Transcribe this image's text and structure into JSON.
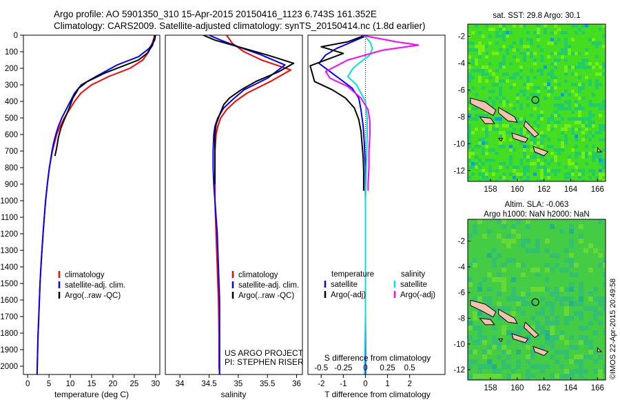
{
  "header": {
    "line1": "Argo profile: AO 5901350_310 15-Apr-2015 20150416_1123 6.743S 161.352E",
    "line2": "Climatology: CARS2009. Satellite-adjusted climatology: synTS_20150414.nc (1.8d earlier)"
  },
  "colors": {
    "climatology": "#ff0000",
    "satellite": "#0000ff",
    "argo": "#000000",
    "satellite_salinity": "#00e0e0",
    "argo_salinity_diff": "#ff00ff",
    "land": "#f4c0b0"
  },
  "chart_data": [
    {
      "type": "line",
      "id": "temperature",
      "xlabel": "temperature (deg C)",
      "xlim": [
        -1,
        31
      ],
      "xticks": [
        0,
        5,
        10,
        15,
        20,
        25,
        30
      ],
      "ylim": [
        2050,
        0
      ],
      "yticks": [
        0,
        100,
        200,
        300,
        400,
        500,
        600,
        700,
        800,
        900,
        1000,
        1100,
        1200,
        1300,
        1400,
        1500,
        1600,
        1700,
        1800,
        1900,
        2000
      ],
      "legend": {
        "position": "lower-middle",
        "entries": [
          "climatology",
          "satellite-adj. clim.",
          "Argo(..raw -QC)"
        ]
      },
      "series": [
        {
          "name": "climatology",
          "x": [
            29.8,
            29.6,
            29.2,
            28.4,
            27.0,
            24.0,
            19.0,
            15.0,
            12.5,
            11.0,
            9.8,
            8.6,
            7.6,
            6.8,
            6.3,
            5.8,
            5.1,
            4.6,
            4.2,
            3.9,
            3.6,
            3.35,
            3.1,
            2.9,
            2.75,
            2.6,
            2.45,
            2.35,
            2.25,
            2.2
          ],
          "y": [
            0,
            20,
            50,
            100,
            150,
            200,
            250,
            300,
            350,
            400,
            450,
            500,
            550,
            600,
            650,
            700,
            800,
            900,
            1000,
            1100,
            1200,
            1300,
            1400,
            1500,
            1600,
            1700,
            1800,
            1900,
            2000,
            2050
          ]
        },
        {
          "name": "satellite-adj. clim.",
          "x": [
            30.0,
            29.8,
            28.5,
            26.0,
            21.0,
            16.0,
            12.6,
            11.0,
            10.0,
            9.0,
            8.0,
            7.2,
            6.6,
            6.1,
            5.7,
            5.1,
            4.6,
            4.2,
            3.9,
            3.6,
            3.35,
            3.1,
            2.9,
            2.75,
            2.6,
            2.45,
            2.35,
            2.25,
            2.2
          ],
          "y": [
            0,
            30,
            80,
            130,
            180,
            250,
            300,
            350,
            400,
            450,
            500,
            550,
            600,
            650,
            700,
            800,
            900,
            1000,
            1100,
            1200,
            1300,
            1400,
            1500,
            1600,
            1700,
            1800,
            1900,
            2000,
            2050
          ]
        },
        {
          "name": "Argo(..raw -QC)",
          "x": [
            29.8,
            29.7,
            29.3,
            28.0,
            26.0,
            22.0,
            18.0,
            14.0,
            12.0,
            10.6,
            9.6,
            8.6,
            7.8,
            7.2,
            6.8,
            6.4
          ],
          "y": [
            0,
            20,
            60,
            110,
            150,
            190,
            230,
            280,
            320,
            380,
            450,
            510,
            560,
            620,
            680,
            730
          ]
        }
      ]
    },
    {
      "type": "line",
      "id": "salinity",
      "xlabel": "salinity",
      "xlim": [
        33.75,
        36.1
      ],
      "xticks": [
        34,
        34.5,
        35,
        35.5,
        36
      ],
      "ylim": [
        2050,
        0
      ],
      "legend": {
        "position": "lower-middle",
        "entries": [
          "climatology",
          "satellite-adj. clim.",
          "Argo(..raw -QC)"
        ]
      },
      "annotations": [
        "US ARGO PROJECT",
        "PI: STEPHEN RISER"
      ],
      "series": [
        {
          "name": "climatology",
          "x": [
            34.8,
            34.9,
            35.1,
            35.4,
            35.9,
            35.55,
            35.15,
            34.95,
            34.8,
            34.7,
            34.65,
            34.62,
            34.6,
            34.6,
            34.6,
            34.6,
            34.61,
            34.62,
            34.63,
            34.64,
            34.65,
            34.66,
            34.67,
            34.67,
            34.68
          ],
          "y": [
            0,
            50,
            100,
            150,
            210,
            280,
            350,
            400,
            450,
            500,
            550,
            600,
            700,
            800,
            900,
            1000,
            1100,
            1200,
            1300,
            1400,
            1500,
            1600,
            1800,
            2000,
            2050
          ]
        },
        {
          "name": "satellite-adj. clim.",
          "x": [
            34.5,
            34.7,
            35.0,
            35.4,
            35.8,
            35.5,
            35.1,
            34.9,
            34.75,
            34.65,
            34.6,
            34.58,
            34.57,
            34.57,
            34.58,
            34.6,
            34.62,
            34.64,
            34.65,
            34.66,
            34.67,
            34.68,
            34.68,
            34.68,
            34.68
          ],
          "y": [
            0,
            30,
            70,
            120,
            180,
            260,
            330,
            390,
            440,
            500,
            550,
            600,
            700,
            800,
            900,
            1000,
            1100,
            1200,
            1300,
            1400,
            1500,
            1600,
            1800,
            2000,
            2050
          ]
        },
        {
          "name": "Argo(..raw -QC)",
          "x": [
            34.4,
            34.6,
            35.0,
            35.5,
            35.95,
            35.7,
            35.3,
            35.05,
            34.85,
            34.75,
            34.68,
            34.62,
            34.6,
            34.6,
            34.6,
            34.6,
            34.6,
            34.6
          ],
          "y": [
            0,
            30,
            70,
            120,
            170,
            220,
            280,
            330,
            380,
            420,
            480,
            540,
            600,
            660,
            720,
            780,
            850,
            900
          ]
        }
      ]
    },
    {
      "type": "line",
      "id": "difference",
      "xlabel_top": "S difference from climatology",
      "xticks_top": [
        -0.5,
        -0.25,
        0,
        0.25,
        0.5
      ],
      "xlabel": "T difference from climatology",
      "xlim": [
        -2.6,
        3.6
      ],
      "xticks": [
        -2,
        -1,
        0,
        1,
        2
      ],
      "ylim": [
        2050,
        0
      ],
      "legend": {
        "position": "lower-middle",
        "headers": [
          "temperature",
          "salinity"
        ],
        "entries": [
          "satellite",
          "Argo(-adj)",
          "satellite",
          "Argo(-adj)"
        ]
      },
      "series": [
        {
          "name": "T satellite",
          "x": [
            0.1,
            -0.6,
            -1.3,
            -1.8,
            -2.1,
            -1.5,
            -1.0,
            -0.6,
            -0.3,
            -0.2,
            -0.1,
            -0.05,
            0,
            0,
            0,
            0
          ],
          "y": [
            0,
            40,
            80,
            120,
            170,
            230,
            280,
            320,
            380,
            450,
            550,
            650,
            800,
            1200,
            1800,
            2050
          ]
        },
        {
          "name": "T Argo(-adj)",
          "x": [
            0,
            -0.8,
            -2.0,
            -1.0,
            -2.5,
            -2.3,
            -1.5,
            -0.9,
            -0.5,
            -0.3,
            -0.2,
            -0.15,
            -0.1,
            -0.08,
            -0.08
          ],
          "y": [
            0,
            40,
            70,
            110,
            185,
            280,
            330,
            380,
            440,
            510,
            580,
            660,
            740,
            820,
            940
          ]
        },
        {
          "name": "S satellite",
          "x": [
            -0.02,
            0.05,
            0.08,
            0.05,
            -0.05,
            -0.14,
            -0.2,
            -0.1,
            0.0,
            0.02,
            0.02,
            0.01,
            0.0,
            0.0,
            0.0,
            -0.01
          ],
          "y": [
            0,
            40,
            80,
            120,
            160,
            200,
            250,
            300,
            400,
            500,
            600,
            800,
            1000,
            1300,
            1700,
            2050
          ]
        },
        {
          "name": "S Argo(-adj)",
          "x": [
            -0.05,
            0.35,
            0.6,
            0.2,
            -0.2,
            -0.45,
            -0.4,
            -0.2,
            -0.05,
            0.03,
            0.05,
            0.05,
            0.04,
            0.04,
            0.03,
            0.03
          ],
          "y": [
            0,
            40,
            60,
            90,
            150,
            220,
            260,
            310,
            380,
            450,
            520,
            600,
            700,
            800,
            900,
            940
          ]
        }
      ]
    },
    {
      "type": "heatmap",
      "id": "sst-map",
      "title": "sat. SST: 29.8 Argo: 30.1",
      "xlim": [
        156.3,
        166.6
      ],
      "ylim": [
        -12.8,
        -1.1
      ],
      "xticks": [
        158,
        160,
        162,
        164,
        166
      ],
      "yticks": [
        -2,
        -4,
        -6,
        -8,
        -10,
        -12
      ],
      "argo_position": [
        161.352,
        -6.743
      ]
    },
    {
      "type": "heatmap",
      "id": "sla-map",
      "title": "Altim. SLA: -0.063",
      "subtitle": "Argo h1000: NaN h2000: NaN",
      "xlim": [
        156.3,
        166.6
      ],
      "ylim": [
        -12.8,
        -0.3
      ],
      "xticks": [
        158,
        160,
        162,
        164,
        166
      ],
      "yticks": [
        -2,
        -4,
        -6,
        -8,
        -10,
        -12
      ],
      "argo_position": [
        161.352,
        -6.743
      ]
    }
  ],
  "credit": "©IMOS 22-Apr-2015 20:49:58"
}
